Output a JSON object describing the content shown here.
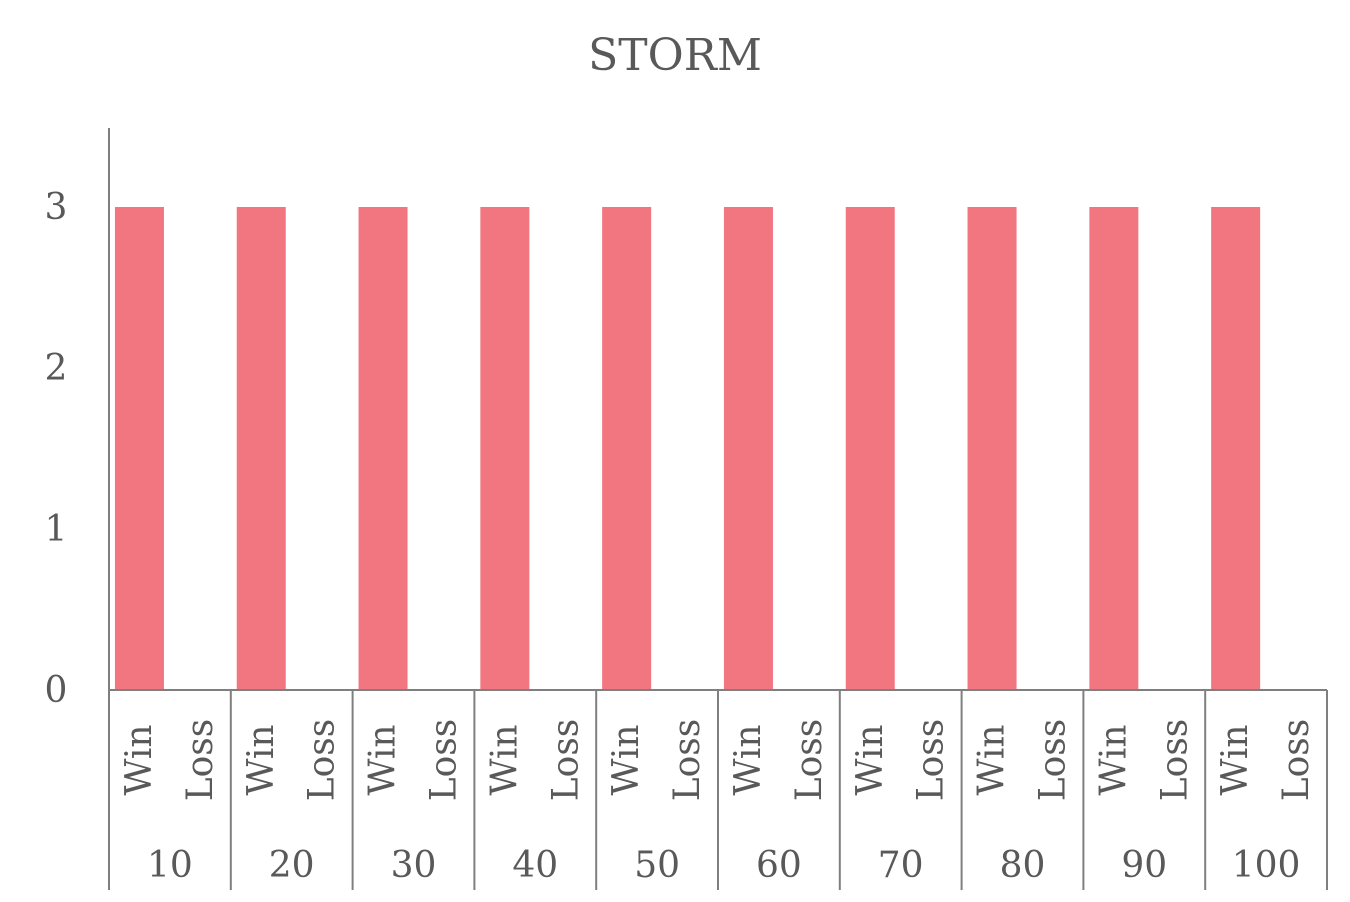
{
  "chart_data": {
    "type": "bar",
    "title": "STORM",
    "xlabel": "",
    "ylabel": "",
    "ylim": [
      0,
      3.5
    ],
    "y_ticks": [
      0,
      1,
      2,
      3
    ],
    "grid": false,
    "legend": "none",
    "bar_color": "#f27680",
    "groups": [
      "10",
      "20",
      "30",
      "40",
      "50",
      "60",
      "70",
      "80",
      "90",
      "100"
    ],
    "subcategories": [
      "Win",
      "Loss"
    ],
    "series": [
      {
        "values": [
          [
            3,
            0
          ],
          [
            3,
            0
          ],
          [
            3,
            0
          ],
          [
            3,
            0
          ],
          [
            3,
            0
          ],
          [
            3,
            0
          ],
          [
            3,
            0
          ],
          [
            3,
            0
          ],
          [
            3,
            0
          ],
          [
            3,
            0
          ]
        ]
      }
    ]
  }
}
